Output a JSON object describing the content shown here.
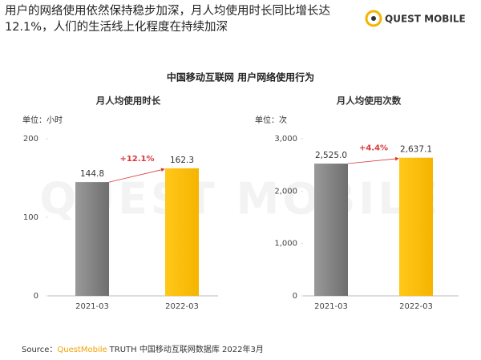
{
  "header": {
    "title_lines": [
      "用户的网络使用依然保持稳步加深，月人均使用时长同比增长达",
      "12.1%，人们的生活线上化程度在持续加深"
    ],
    "logo": "QUEST MOBILE"
  },
  "section_title": "中国移动互联网 用户网络使用行为",
  "watermark": "QUEST MOBILE",
  "chart_data": [
    {
      "type": "bar",
      "title": "月人均使用时长",
      "unit_label": "单位：小时",
      "categories": [
        "2021-03",
        "2022-03"
      ],
      "values": [
        144.8,
        162.3
      ],
      "colors": [
        "#7f7f7f",
        "#ffc000"
      ],
      "annotation": "+12.1%",
      "ylim": [
        0,
        200
      ],
      "yticks": [
        0,
        100,
        200
      ]
    },
    {
      "type": "bar",
      "title": "月人均使用次数",
      "unit_label": "单位：次",
      "categories": [
        "2021-03",
        "2022-03"
      ],
      "values": [
        2525.0,
        2637.1
      ],
      "value_labels": [
        "2,525.0",
        "2,637.1"
      ],
      "colors": [
        "#7f7f7f",
        "#ffc000"
      ],
      "annotation": "+4.4%",
      "ylim": [
        0,
        3000
      ],
      "yticks": [
        0,
        {
          "value": 1000,
          "label": "1,000"
        },
        {
          "value": 2000,
          "label": "2,000"
        },
        {
          "value": 3000,
          "label": "3,000"
        }
      ]
    }
  ],
  "source": {
    "prefix": "Source：",
    "brand": "QuestMobile",
    "rest": "TRUTH 中国移动互联网数据库 2022年3月"
  }
}
